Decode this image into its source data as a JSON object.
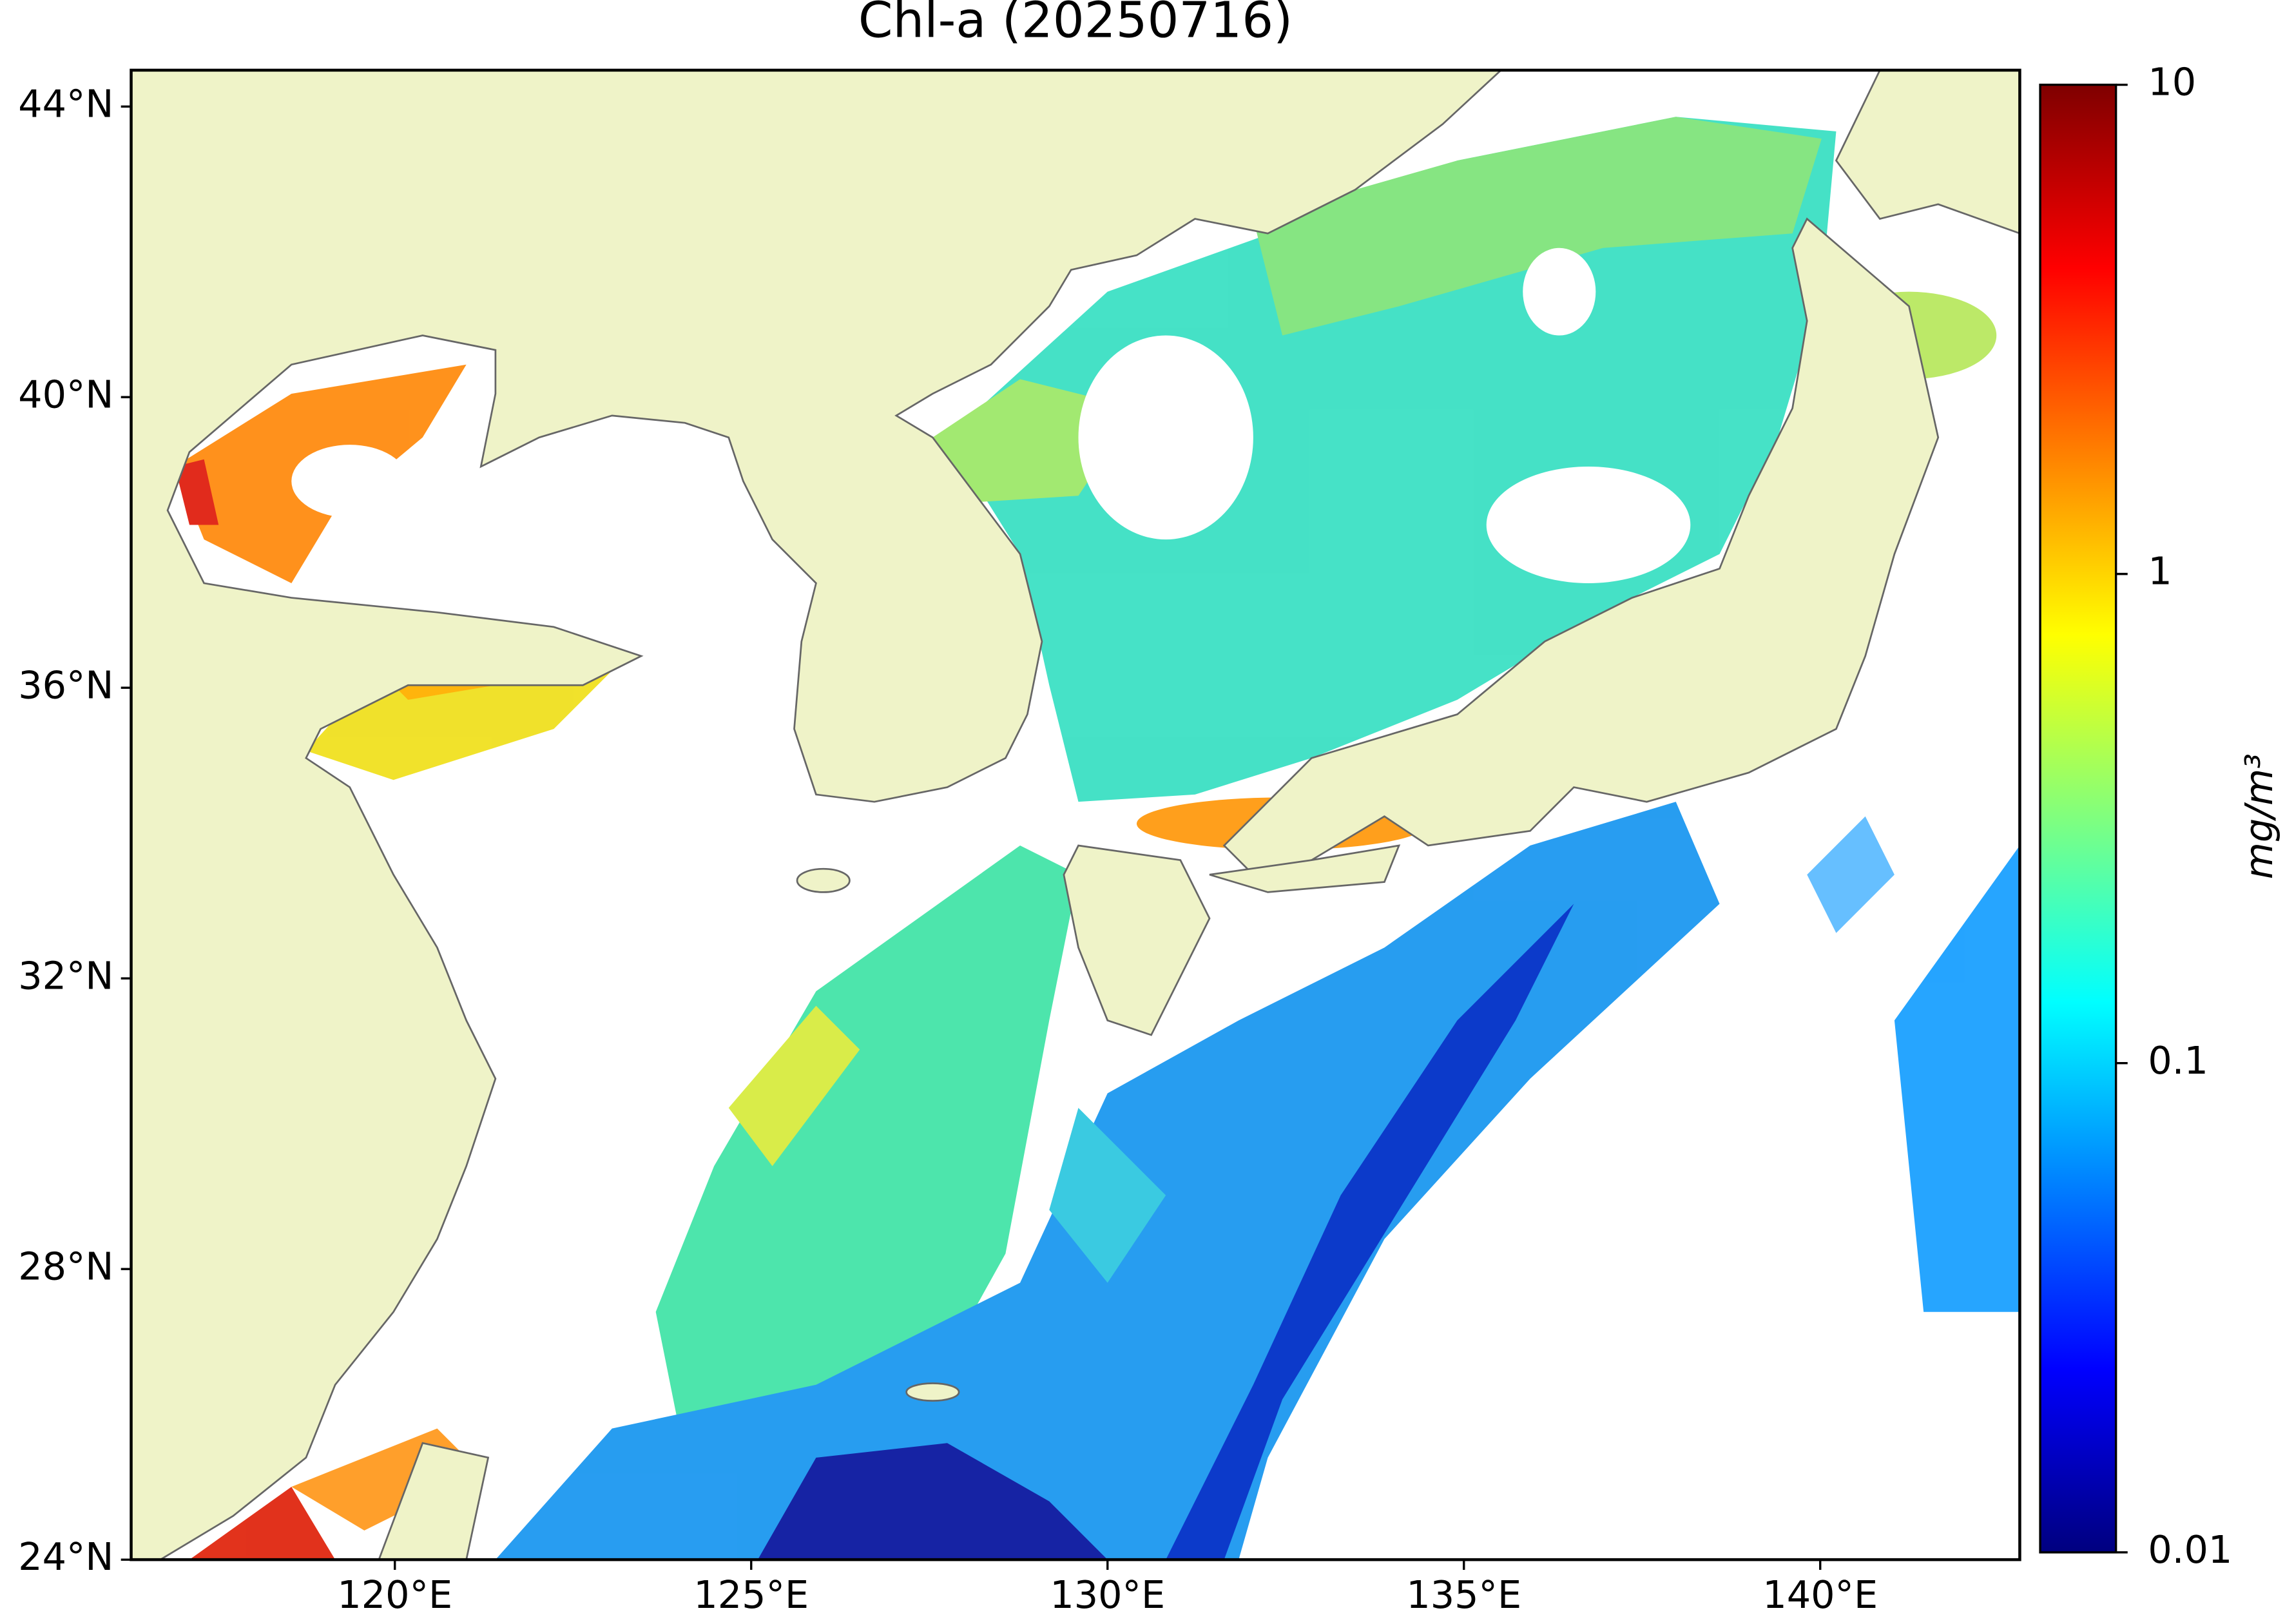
{
  "chart_data": {
    "type": "map",
    "title": "Chl-a (20250716)",
    "xlim": [
      116.3,
      142.8
    ],
    "ylim": [
      24,
      44.5
    ],
    "xticks": [
      {
        "value": 120,
        "label": "120°E"
      },
      {
        "value": 125,
        "label": "125°E"
      },
      {
        "value": 130,
        "label": "130°E"
      },
      {
        "value": 135,
        "label": "135°E"
      },
      {
        "value": 140,
        "label": "140°E"
      }
    ],
    "yticks": [
      {
        "value": 24,
        "label": "24°N"
      },
      {
        "value": 28,
        "label": "28°N"
      },
      {
        "value": 32,
        "label": "32°N"
      },
      {
        "value": 36,
        "label": "36°N"
      },
      {
        "value": 40,
        "label": "40°N"
      },
      {
        "value": 44,
        "label": "44°N"
      }
    ],
    "colorbar": {
      "label": "mg/m³",
      "scale": "log",
      "lim": [
        0.01,
        10
      ],
      "ticks": [
        0.01,
        0.1,
        1,
        10
      ],
      "colormap": "jet"
    }
  }
}
